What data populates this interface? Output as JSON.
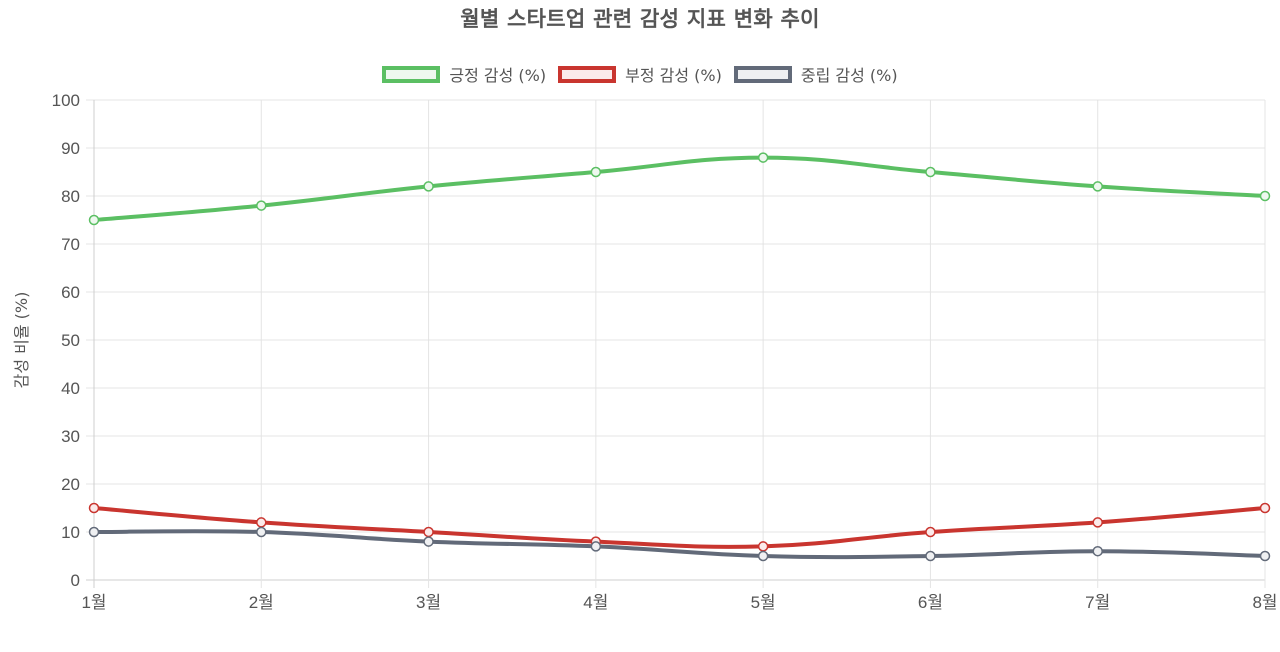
{
  "chart_data": {
    "type": "line",
    "title": "월별 스타트업 관련 감성 지표 변화 추이",
    "xlabel": "",
    "ylabel": "감성 비율 (%)",
    "ylim": [
      0,
      100
    ],
    "yticks": [
      0,
      10,
      20,
      30,
      40,
      50,
      60,
      70,
      80,
      90,
      100
    ],
    "categories": [
      "1월",
      "2월",
      "3월",
      "4월",
      "5월",
      "6월",
      "7월",
      "8월"
    ],
    "grid": true,
    "legend_position": "top",
    "series": [
      {
        "name": "긍정 감성 (%)",
        "color": "#5bbf63",
        "fill": "#eef8ef",
        "values": [
          75,
          78,
          82,
          85,
          88,
          85,
          82,
          80
        ]
      },
      {
        "name": "부정 감성 (%)",
        "color": "#c9352f",
        "fill": "#fbeaea",
        "values": [
          15,
          12,
          10,
          8,
          7,
          10,
          12,
          15
        ]
      },
      {
        "name": "중립 감성 (%)",
        "color": "#626a79",
        "fill": "#eff0f2",
        "values": [
          10,
          10,
          8,
          7,
          5,
          5,
          6,
          5
        ]
      }
    ]
  }
}
